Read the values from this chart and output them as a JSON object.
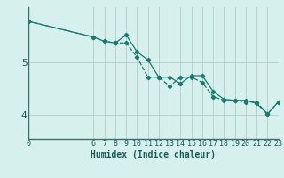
{
  "xlabel": "Humidex (Indice chaleur)",
  "line1_x": [
    0,
    6,
    7,
    8,
    9,
    10,
    11,
    12,
    13,
    14,
    15,
    16,
    17,
    18,
    19,
    20,
    21,
    22,
    23
  ],
  "line1_y": [
    5.78,
    5.48,
    5.4,
    5.37,
    5.52,
    5.2,
    5.05,
    4.72,
    4.72,
    4.6,
    4.75,
    4.75,
    4.45,
    4.3,
    4.28,
    4.28,
    4.22,
    4.02,
    4.25
  ],
  "line2_x": [
    0,
    6,
    7,
    8,
    9,
    10,
    11,
    12,
    13,
    14,
    15,
    16,
    17,
    18,
    19,
    20,
    21,
    22,
    23
  ],
  "line2_y": [
    5.78,
    5.48,
    5.4,
    5.37,
    5.37,
    5.1,
    4.72,
    4.72,
    4.55,
    4.72,
    4.72,
    4.62,
    4.35,
    4.28,
    4.28,
    4.25,
    4.25,
    4.02,
    4.25
  ],
  "line_color": "#1a7a6e",
  "bg_color": "#d6f0ee",
  "grid_color": "#b8ccc9",
  "axis_color": "#3a6e6a",
  "tick_color": "#1a5a56",
  "yticks": [
    4,
    5
  ],
  "ylim": [
    3.55,
    6.05
  ],
  "xlim": [
    0,
    23
  ],
  "xtick_positions": [
    0,
    6,
    7,
    8,
    9,
    10,
    11,
    12,
    13,
    14,
    15,
    16,
    17,
    18,
    19,
    20,
    21,
    22,
    23
  ],
  "xtick_labels": [
    "0",
    "6",
    "7",
    "8",
    "9",
    "10",
    "11",
    "12",
    "13",
    "14",
    "15",
    "16",
    "17",
    "18",
    "19",
    "20",
    "21",
    "22",
    "23"
  ],
  "xlabel_fontsize": 7,
  "ytick_fontsize": 8,
  "xtick_fontsize": 6
}
